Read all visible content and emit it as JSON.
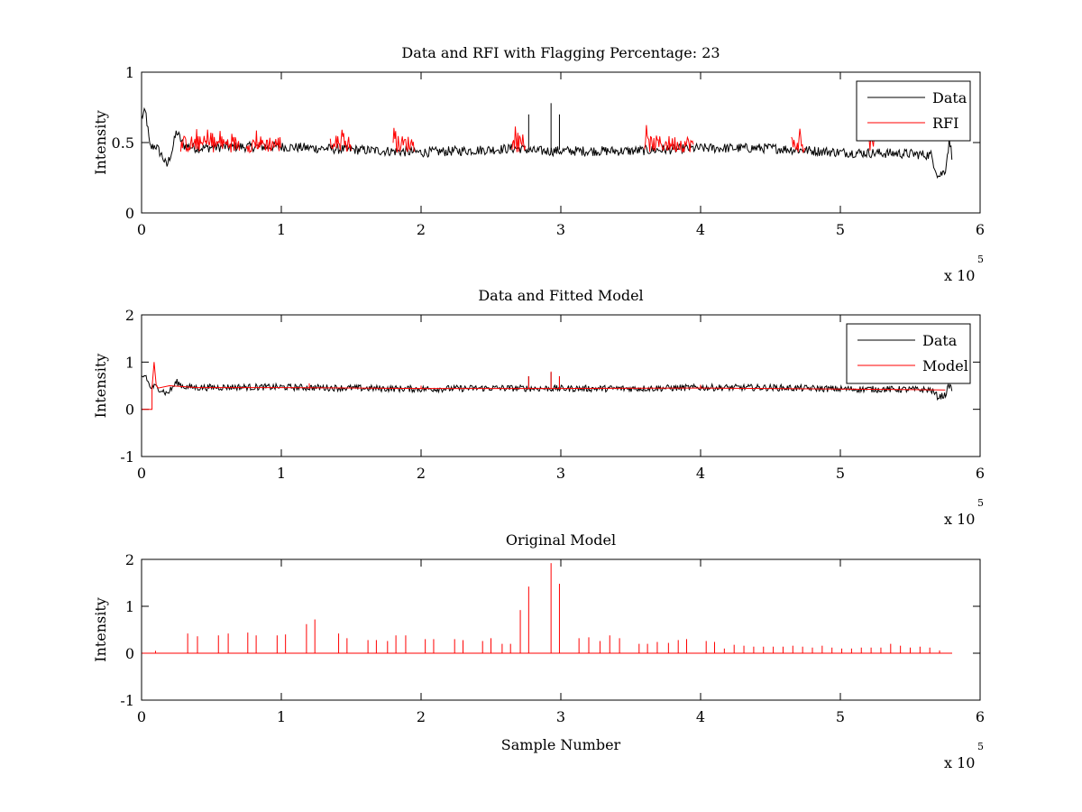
{
  "window": {
    "title": ""
  },
  "chart_data": [
    {
      "id": "panel1",
      "type": "line",
      "title": "Data and RFI with Flagging Percentage: 23",
      "xlabel": "",
      "ylabel": "Intensity",
      "xlim": [
        0,
        600000
      ],
      "ylim": [
        0,
        1
      ],
      "xticks": [
        0,
        1,
        2,
        3,
        4,
        5,
        6
      ],
      "xtick_labels": [
        "0",
        "1",
        "2",
        "3",
        "4",
        "5",
        "6"
      ],
      "yticks": [
        0,
        0.5,
        1
      ],
      "ytick_labels": [
        "0",
        "0.5",
        "1"
      ],
      "x_multiplier": "x 10",
      "x_multiplier_exp": "5",
      "legend": {
        "placement": "top-right",
        "entries": [
          "Data",
          "RFI"
        ]
      },
      "series": [
        {
          "name": "Data",
          "color": "#000000",
          "x": [
            0,
            3000,
            6000,
            10000,
            15000,
            18000,
            22000,
            25000,
            30000,
            40000,
            60000,
            80000,
            100000,
            150000,
            200000,
            250000,
            270000,
            280000,
            300000,
            350000,
            400000,
            450000,
            500000,
            550000,
            565000,
            570000,
            575000,
            578000,
            580000
          ],
          "y": [
            0.68,
            0.72,
            0.46,
            0.48,
            0.4,
            0.33,
            0.45,
            0.58,
            0.48,
            0.46,
            0.47,
            0.47,
            0.47,
            0.45,
            0.43,
            0.45,
            0.46,
            0.44,
            0.44,
            0.44,
            0.46,
            0.46,
            0.43,
            0.42,
            0.41,
            0.26,
            0.3,
            0.52,
            0.4
          ]
        },
        {
          "name": "RFI",
          "color": "#ff0000",
          "segments": [
            [
              28000,
              70000
            ],
            [
              75000,
              100000
            ],
            [
              135000,
              150000
            ],
            [
              180000,
              195000
            ],
            [
              265000,
              275000
            ],
            [
              360000,
              395000
            ],
            [
              465000,
              475000
            ],
            [
              520000,
              525000
            ]
          ],
          "y_level": 0.49
        }
      ],
      "spikes": [
        {
          "x": 277000,
          "y": 0.7
        },
        {
          "x": 293000,
          "y": 0.78
        },
        {
          "x": 299000,
          "y": 0.7
        }
      ]
    },
    {
      "id": "panel2",
      "type": "line",
      "title": "Data and Fitted Model",
      "xlabel": "",
      "ylabel": "Intensity",
      "xlim": [
        0,
        600000
      ],
      "ylim": [
        -1,
        2
      ],
      "xticks": [
        0,
        1,
        2,
        3,
        4,
        5,
        6
      ],
      "xtick_labels": [
        "0",
        "1",
        "2",
        "3",
        "4",
        "5",
        "6"
      ],
      "yticks": [
        -1,
        0,
        1,
        2
      ],
      "ytick_labels": [
        "-1",
        "0",
        "1",
        "2"
      ],
      "x_multiplier": "x 10",
      "x_multiplier_exp": "5",
      "legend": {
        "placement": "top-right",
        "entries": [
          "Data",
          "Model"
        ]
      },
      "series": [
        {
          "name": "Data",
          "color": "#000000",
          "x": [
            0,
            3000,
            6000,
            10000,
            15000,
            18000,
            22000,
            25000,
            30000,
            40000,
            60000,
            80000,
            100000,
            150000,
            200000,
            250000,
            300000,
            350000,
            400000,
            450000,
            500000,
            550000,
            565000,
            570000,
            575000,
            578000,
            580000
          ],
          "y": [
            0.68,
            0.72,
            0.46,
            0.48,
            0.4,
            0.33,
            0.45,
            0.58,
            0.48,
            0.46,
            0.47,
            0.47,
            0.47,
            0.45,
            0.43,
            0.45,
            0.44,
            0.44,
            0.46,
            0.46,
            0.43,
            0.42,
            0.41,
            0.26,
            0.3,
            0.52,
            0.4
          ]
        },
        {
          "name": "Model",
          "color": "#ff0000",
          "x": [
            0,
            7500,
            7500,
            9000,
            10500,
            12000,
            20000,
            40000,
            100000,
            200000,
            300000,
            400000,
            500000,
            575000
          ],
          "y": [
            0,
            0,
            0.45,
            1.0,
            0.5,
            0.45,
            0.5,
            0.46,
            0.46,
            0.44,
            0.44,
            0.45,
            0.43,
            0.41
          ]
        }
      ],
      "spikes": [
        {
          "x": 277000,
          "y": 0.7
        },
        {
          "x": 293000,
          "y": 0.78
        },
        {
          "x": 299000,
          "y": 0.7
        }
      ]
    },
    {
      "id": "panel3",
      "type": "line",
      "title": "Original Model",
      "xlabel": "Sample Number",
      "ylabel": "Intensity",
      "xlim": [
        0,
        600000
      ],
      "ylim": [
        -1,
        2
      ],
      "xticks": [
        0,
        1,
        2,
        3,
        4,
        5,
        6
      ],
      "xtick_labels": [
        "0",
        "1",
        "2",
        "3",
        "4",
        "5",
        "6"
      ],
      "yticks": [
        -1,
        0,
        1,
        2
      ],
      "ytick_labels": [
        "-1",
        "0",
        "1",
        "2"
      ],
      "x_multiplier": "x 10",
      "x_multiplier_exp": "5",
      "series": [
        {
          "name": "",
          "color": "#ff0000",
          "baseline": 0,
          "x_range": [
            0,
            580000
          ],
          "spikes": [
            {
              "x": 10000,
              "y": 0.05
            },
            {
              "x": 33000,
              "y": 0.42
            },
            {
              "x": 40000,
              "y": 0.36
            },
            {
              "x": 55000,
              "y": 0.38
            },
            {
              "x": 62000,
              "y": 0.42
            },
            {
              "x": 76000,
              "y": 0.44
            },
            {
              "x": 82000,
              "y": 0.38
            },
            {
              "x": 97000,
              "y": 0.38
            },
            {
              "x": 103000,
              "y": 0.4
            },
            {
              "x": 118000,
              "y": 0.62
            },
            {
              "x": 124000,
              "y": 0.72
            },
            {
              "x": 141000,
              "y": 0.42
            },
            {
              "x": 147000,
              "y": 0.32
            },
            {
              "x": 162000,
              "y": 0.28
            },
            {
              "x": 168000,
              "y": 0.28
            },
            {
              "x": 176000,
              "y": 0.26
            },
            {
              "x": 182000,
              "y": 0.38
            },
            {
              "x": 189000,
              "y": 0.38
            },
            {
              "x": 203000,
              "y": 0.3
            },
            {
              "x": 209000,
              "y": 0.3
            },
            {
              "x": 224000,
              "y": 0.3
            },
            {
              "x": 230000,
              "y": 0.28
            },
            {
              "x": 244000,
              "y": 0.26
            },
            {
              "x": 250000,
              "y": 0.32
            },
            {
              "x": 258000,
              "y": 0.2
            },
            {
              "x": 264000,
              "y": 0.2
            },
            {
              "x": 271000,
              "y": 0.92
            },
            {
              "x": 277000,
              "y": 1.42
            },
            {
              "x": 293000,
              "y": 1.92
            },
            {
              "x": 299000,
              "y": 1.48
            },
            {
              "x": 313000,
              "y": 0.32
            },
            {
              "x": 320000,
              "y": 0.34
            },
            {
              "x": 328000,
              "y": 0.26
            },
            {
              "x": 335000,
              "y": 0.38
            },
            {
              "x": 342000,
              "y": 0.32
            },
            {
              "x": 356000,
              "y": 0.2
            },
            {
              "x": 362000,
              "y": 0.2
            },
            {
              "x": 369000,
              "y": 0.24
            },
            {
              "x": 377000,
              "y": 0.22
            },
            {
              "x": 384000,
              "y": 0.28
            },
            {
              "x": 390000,
              "y": 0.3
            },
            {
              "x": 404000,
              "y": 0.26
            },
            {
              "x": 410000,
              "y": 0.24
            },
            {
              "x": 417000,
              "y": 0.1
            },
            {
              "x": 424000,
              "y": 0.18
            },
            {
              "x": 431000,
              "y": 0.16
            },
            {
              "x": 438000,
              "y": 0.14
            },
            {
              "x": 445000,
              "y": 0.14
            },
            {
              "x": 452000,
              "y": 0.14
            },
            {
              "x": 459000,
              "y": 0.14
            },
            {
              "x": 466000,
              "y": 0.16
            },
            {
              "x": 473000,
              "y": 0.14
            },
            {
              "x": 480000,
              "y": 0.12
            },
            {
              "x": 487000,
              "y": 0.16
            },
            {
              "x": 494000,
              "y": 0.12
            },
            {
              "x": 501000,
              "y": 0.1
            },
            {
              "x": 508000,
              "y": 0.1
            },
            {
              "x": 515000,
              "y": 0.12
            },
            {
              "x": 522000,
              "y": 0.12
            },
            {
              "x": 529000,
              "y": 0.12
            },
            {
              "x": 536000,
              "y": 0.2
            },
            {
              "x": 543000,
              "y": 0.16
            },
            {
              "x": 550000,
              "y": 0.12
            },
            {
              "x": 557000,
              "y": 0.14
            },
            {
              "x": 564000,
              "y": 0.12
            },
            {
              "x": 571000,
              "y": 0.06
            }
          ]
        }
      ]
    }
  ]
}
